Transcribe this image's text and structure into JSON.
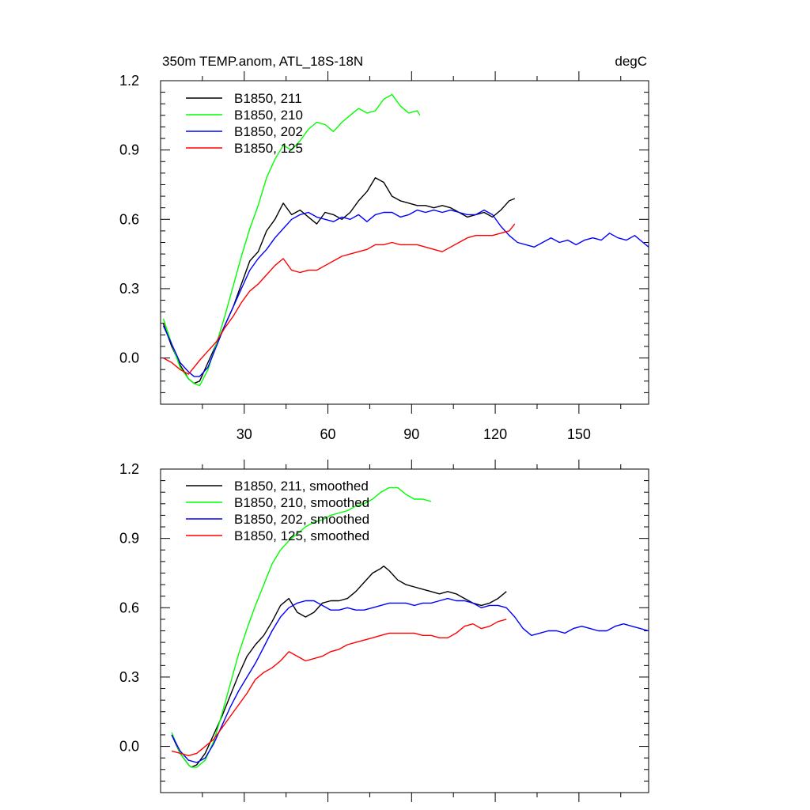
{
  "chart_data": [
    {
      "type": "line",
      "title": "350m TEMP.anom, ATL_18S-18N",
      "units": "degC",
      "xlim": [
        0,
        175
      ],
      "ylim": [
        -0.2,
        1.2
      ],
      "yticks": [
        "1.2",
        "0.9",
        "0.6",
        "0.3",
        "0.0"
      ],
      "ytick_values": [
        1.2,
        0.9,
        0.6,
        0.3,
        0.0
      ],
      "xticks": [
        "30",
        "60",
        "90",
        "120",
        "150"
      ],
      "xtick_values": [
        30,
        60,
        90,
        120,
        150
      ],
      "series": [
        {
          "name": "B1850, 211",
          "color": "#000000",
          "x": [
            1,
            4,
            7,
            10,
            12,
            14,
            17,
            20,
            23,
            26,
            29,
            32,
            35,
            38,
            41,
            44,
            47,
            50,
            53,
            56,
            59,
            62,
            65,
            68,
            71,
            74,
            77,
            80,
            83,
            86,
            89,
            92,
            95,
            98,
            101,
            104,
            107,
            110,
            113,
            116,
            119,
            122,
            125,
            127
          ],
          "y": [
            0.15,
            0.05,
            -0.03,
            -0.09,
            -0.11,
            -0.1,
            -0.02,
            0.06,
            0.14,
            0.22,
            0.32,
            0.42,
            0.46,
            0.55,
            0.6,
            0.67,
            0.62,
            0.64,
            0.61,
            0.58,
            0.63,
            0.62,
            0.6,
            0.63,
            0.68,
            0.72,
            0.78,
            0.76,
            0.7,
            0.68,
            0.67,
            0.66,
            0.66,
            0.65,
            0.66,
            0.65,
            0.63,
            0.61,
            0.62,
            0.63,
            0.61,
            0.64,
            0.68,
            0.69
          ]
        },
        {
          "name": "B1850, 210",
          "color": "#00ff00",
          "x": [
            1,
            4,
            7,
            10,
            12,
            14,
            17,
            20,
            23,
            26,
            29,
            32,
            35,
            38,
            41,
            44,
            47,
            50,
            53,
            56,
            59,
            62,
            65,
            68,
            71,
            74,
            77,
            80,
            83,
            86,
            89,
            92,
            93
          ],
          "y": [
            0.17,
            0.06,
            -0.04,
            -0.09,
            -0.11,
            -0.12,
            -0.05,
            0.06,
            0.18,
            0.31,
            0.44,
            0.56,
            0.66,
            0.78,
            0.86,
            0.92,
            0.9,
            0.94,
            0.99,
            1.02,
            1.01,
            0.98,
            1.02,
            1.05,
            1.08,
            1.06,
            1.07,
            1.12,
            1.14,
            1.09,
            1.06,
            1.07,
            1.05
          ]
        },
        {
          "name": "B1850, 202",
          "color": "#0000ff",
          "x": [
            1,
            4,
            7,
            10,
            12,
            14,
            17,
            20,
            23,
            26,
            29,
            32,
            35,
            38,
            41,
            44,
            47,
            50,
            53,
            56,
            59,
            62,
            65,
            68,
            71,
            74,
            77,
            80,
            83,
            86,
            89,
            92,
            95,
            98,
            101,
            104,
            107,
            110,
            113,
            116,
            119,
            122,
            125,
            128,
            131,
            134,
            137,
            140,
            143,
            146,
            149,
            152,
            155,
            158,
            161,
            164,
            167,
            170,
            173,
            175
          ],
          "y": [
            0.14,
            0.06,
            -0.02,
            -0.06,
            -0.08,
            -0.08,
            -0.04,
            0.05,
            0.14,
            0.22,
            0.3,
            0.38,
            0.43,
            0.47,
            0.52,
            0.56,
            0.6,
            0.62,
            0.63,
            0.61,
            0.6,
            0.59,
            0.61,
            0.6,
            0.62,
            0.59,
            0.62,
            0.63,
            0.63,
            0.61,
            0.62,
            0.64,
            0.63,
            0.64,
            0.63,
            0.64,
            0.63,
            0.62,
            0.62,
            0.64,
            0.62,
            0.57,
            0.53,
            0.5,
            0.49,
            0.48,
            0.5,
            0.52,
            0.5,
            0.51,
            0.49,
            0.51,
            0.52,
            0.51,
            0.54,
            0.52,
            0.51,
            0.53,
            0.5,
            0.48
          ]
        },
        {
          "name": "B1850, 125",
          "color": "#ff0000",
          "x": [
            1,
            4,
            7,
            10,
            12,
            14,
            17,
            20,
            23,
            26,
            29,
            32,
            35,
            38,
            41,
            44,
            47,
            50,
            53,
            56,
            59,
            62,
            65,
            68,
            71,
            74,
            77,
            80,
            83,
            86,
            89,
            92,
            95,
            98,
            101,
            104,
            107,
            110,
            113,
            116,
            119,
            122,
            125,
            127
          ],
          "y": [
            0.0,
            -0.02,
            -0.05,
            -0.07,
            -0.04,
            -0.01,
            0.03,
            0.07,
            0.13,
            0.18,
            0.24,
            0.29,
            0.32,
            0.36,
            0.4,
            0.43,
            0.38,
            0.37,
            0.38,
            0.38,
            0.4,
            0.42,
            0.44,
            0.45,
            0.46,
            0.47,
            0.49,
            0.49,
            0.5,
            0.49,
            0.49,
            0.49,
            0.48,
            0.47,
            0.46,
            0.48,
            0.5,
            0.52,
            0.53,
            0.53,
            0.53,
            0.54,
            0.55,
            0.58
          ]
        }
      ]
    },
    {
      "type": "line",
      "xlim": [
        0,
        175
      ],
      "ylim": [
        -0.2,
        1.2
      ],
      "yticks": [
        "1.2",
        "0.9",
        "0.6",
        "0.3",
        "0.0"
      ],
      "ytick_values": [
        1.2,
        0.9,
        0.6,
        0.3,
        0.0
      ],
      "xtick_values": [
        30,
        60,
        90,
        120,
        150
      ],
      "series": [
        {
          "name": "B1850, 211, smoothed",
          "color": "#000000",
          "x": [
            4,
            7,
            10,
            11,
            13,
            16,
            19,
            22,
            25,
            28,
            31,
            34,
            37,
            40,
            43,
            46,
            49,
            52,
            55,
            58,
            61,
            64,
            67,
            70,
            73,
            76,
            79,
            80,
            82,
            85,
            88,
            91,
            94,
            97,
            100,
            103,
            106,
            109,
            112,
            115,
            118,
            121,
            124
          ],
          "y": [
            0.05,
            -0.03,
            -0.08,
            -0.09,
            -0.08,
            -0.03,
            0.05,
            0.13,
            0.22,
            0.31,
            0.39,
            0.44,
            0.48,
            0.54,
            0.61,
            0.64,
            0.58,
            0.56,
            0.58,
            0.62,
            0.63,
            0.63,
            0.64,
            0.67,
            0.71,
            0.75,
            0.77,
            0.78,
            0.76,
            0.72,
            0.7,
            0.69,
            0.68,
            0.67,
            0.66,
            0.67,
            0.66,
            0.64,
            0.62,
            0.61,
            0.62,
            0.64,
            0.67
          ]
        },
        {
          "name": "B1850, 210, smoothed",
          "color": "#00ff00",
          "x": [
            4,
            7,
            10,
            11,
            13,
            16,
            19,
            22,
            25,
            28,
            31,
            34,
            37,
            40,
            43,
            46,
            49,
            52,
            55,
            58,
            61,
            64,
            67,
            70,
            73,
            76,
            79,
            82,
            85,
            88,
            91,
            94,
            97
          ],
          "y": [
            0.06,
            -0.03,
            -0.08,
            -0.09,
            -0.09,
            -0.06,
            0.02,
            0.14,
            0.27,
            0.4,
            0.51,
            0.61,
            0.7,
            0.79,
            0.85,
            0.89,
            0.92,
            0.95,
            0.97,
            0.98,
            1.0,
            1.01,
            1.02,
            1.04,
            1.05,
            1.07,
            1.1,
            1.12,
            1.12,
            1.09,
            1.07,
            1.07,
            1.06
          ]
        },
        {
          "name": "B1850, 202, smoothed",
          "color": "#0000ff",
          "x": [
            4,
            7,
            10,
            13,
            16,
            19,
            22,
            25,
            28,
            31,
            34,
            37,
            40,
            43,
            46,
            49,
            52,
            55,
            58,
            61,
            64,
            67,
            70,
            73,
            76,
            79,
            82,
            85,
            88,
            91,
            94,
            97,
            100,
            103,
            106,
            109,
            112,
            115,
            118,
            121,
            124,
            127,
            130,
            133,
            136,
            139,
            142,
            145,
            148,
            151,
            154,
            157,
            160,
            163,
            166,
            169,
            172,
            175
          ],
          "y": [
            0.05,
            -0.02,
            -0.06,
            -0.07,
            -0.05,
            0.01,
            0.09,
            0.17,
            0.24,
            0.3,
            0.36,
            0.43,
            0.5,
            0.56,
            0.6,
            0.62,
            0.63,
            0.63,
            0.61,
            0.59,
            0.59,
            0.6,
            0.59,
            0.59,
            0.6,
            0.61,
            0.62,
            0.62,
            0.62,
            0.61,
            0.62,
            0.62,
            0.63,
            0.64,
            0.63,
            0.63,
            0.62,
            0.6,
            0.61,
            0.61,
            0.6,
            0.56,
            0.51,
            0.48,
            0.49,
            0.5,
            0.5,
            0.49,
            0.51,
            0.52,
            0.51,
            0.5,
            0.5,
            0.52,
            0.53,
            0.52,
            0.51,
            0.5
          ]
        },
        {
          "name": "B1850, 125, smoothed",
          "color": "#ff0000",
          "x": [
            4,
            7,
            10,
            13,
            16,
            19,
            22,
            25,
            28,
            31,
            34,
            37,
            40,
            43,
            46,
            49,
            52,
            55,
            58,
            61,
            64,
            67,
            70,
            73,
            76,
            79,
            82,
            85,
            88,
            91,
            94,
            97,
            100,
            103,
            106,
            109,
            112,
            115,
            118,
            121,
            124
          ],
          "y": [
            -0.02,
            -0.03,
            -0.04,
            -0.03,
            0.0,
            0.03,
            0.08,
            0.13,
            0.18,
            0.23,
            0.29,
            0.32,
            0.34,
            0.37,
            0.41,
            0.39,
            0.37,
            0.38,
            0.39,
            0.41,
            0.42,
            0.44,
            0.45,
            0.46,
            0.47,
            0.48,
            0.49,
            0.49,
            0.49,
            0.49,
            0.48,
            0.48,
            0.47,
            0.47,
            0.49,
            0.52,
            0.53,
            0.51,
            0.52,
            0.54,
            0.55
          ]
        }
      ]
    }
  ]
}
